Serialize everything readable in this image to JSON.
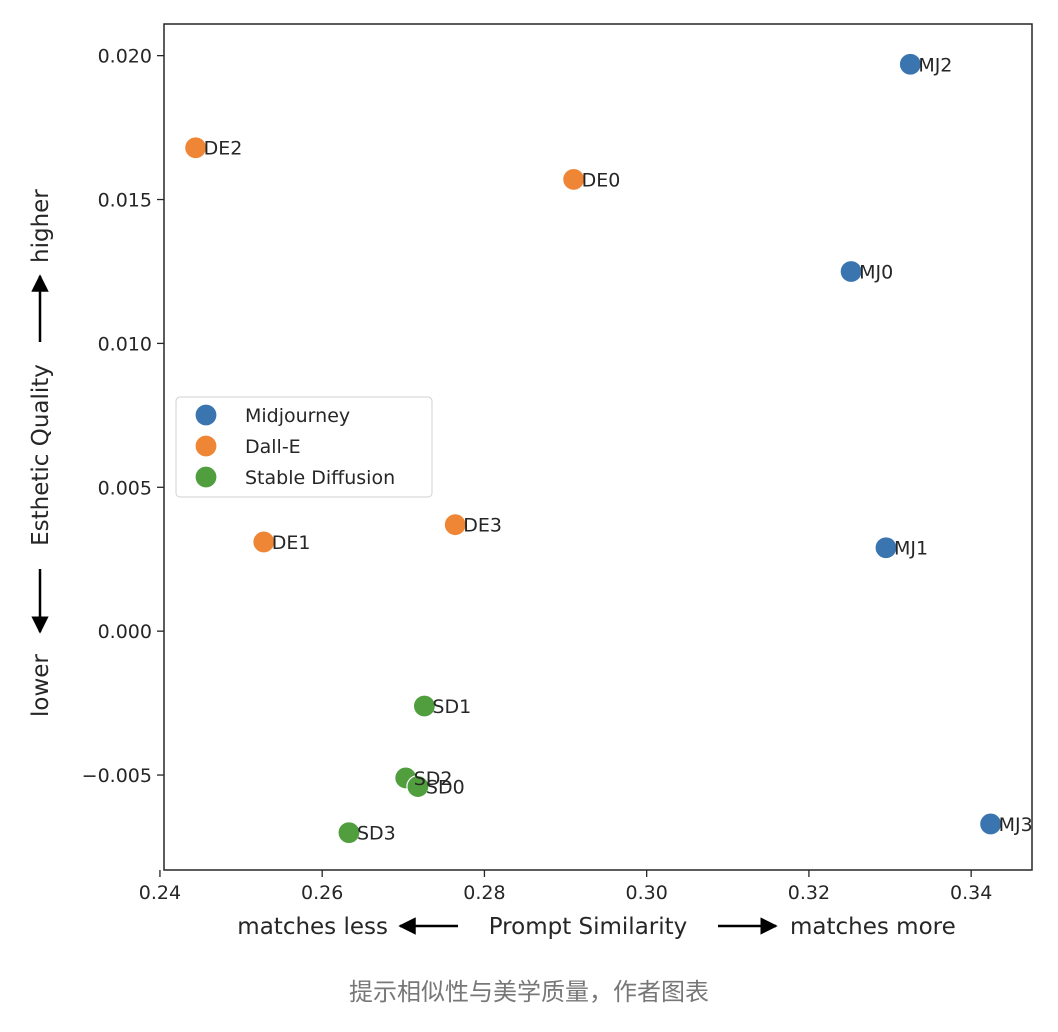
{
  "caption": "提示相似性与美学质量，作者图表",
  "chart_data": {
    "type": "scatter",
    "title": "",
    "xlabel": {
      "left": "matches less",
      "center": "Prompt Similarity",
      "right": "matches more"
    },
    "ylabel": {
      "left": "lower",
      "center": "Esthetic Quality",
      "right": "higher"
    },
    "xlim": [
      0.2405,
      0.3475
    ],
    "ylim": [
      -0.0083,
      0.0211
    ],
    "x_ticks": [
      0.24,
      0.26,
      0.28,
      0.3,
      0.32,
      0.34
    ],
    "x_tick_labels": [
      "0.24",
      "0.26",
      "0.28",
      "0.30",
      "0.32",
      "0.34"
    ],
    "y_ticks": [
      -0.005,
      0.0,
      0.005,
      0.01,
      0.015,
      0.02
    ],
    "y_tick_labels": [
      "−0.005",
      "0.000",
      "0.005",
      "0.010",
      "0.015",
      "0.020"
    ],
    "grid": false,
    "legend_position": "center-left",
    "series": [
      {
        "name": "Midjourney",
        "color": "#3a75b0",
        "points": [
          {
            "label": "MJ2",
            "x": 0.3325,
            "y": 0.0197
          },
          {
            "label": "MJ0",
            "x": 0.3252,
            "y": 0.0125
          },
          {
            "label": "MJ1",
            "x": 0.3295,
            "y": 0.0029
          },
          {
            "label": "MJ3",
            "x": 0.3424,
            "y": -0.0067
          }
        ]
      },
      {
        "name": "Dall-E",
        "color": "#ef8636",
        "points": [
          {
            "label": "DE2",
            "x": 0.2444,
            "y": 0.0168
          },
          {
            "label": "DE0",
            "x": 0.291,
            "y": 0.0157
          },
          {
            "label": "DE3",
            "x": 0.2764,
            "y": 0.0037
          },
          {
            "label": "DE1",
            "x": 0.2528,
            "y": 0.0031
          }
        ]
      },
      {
        "name": "Stable Diffusion",
        "color": "#519e3e",
        "points": [
          {
            "label": "SD1",
            "x": 0.2726,
            "y": -0.0026
          },
          {
            "label": "SD2",
            "x": 0.2703,
            "y": -0.0051
          },
          {
            "label": "SD0",
            "x": 0.2718,
            "y": -0.0054
          },
          {
            "label": "SD3",
            "x": 0.2633,
            "y": -0.007
          }
        ]
      }
    ]
  }
}
